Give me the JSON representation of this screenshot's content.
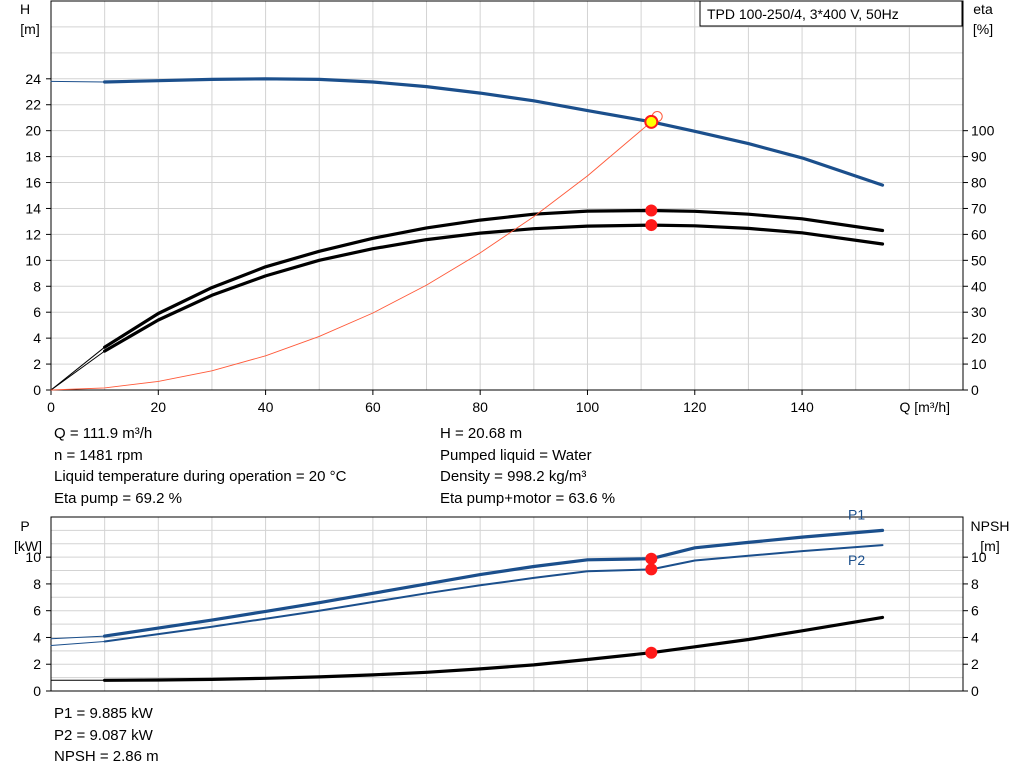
{
  "title_box": "TPD 100-250/4, 3*400 V, 50Hz",
  "colors": {
    "head": "#1b4f8c",
    "power": "#1b4f8c",
    "eta": "#000000",
    "npsh": "#000000",
    "system": "#ff5a3a",
    "point": "#ff1a1a",
    "op_fill": "#ffff00",
    "grid": "#d3d3d3"
  },
  "chart_data": [
    {
      "type": "line",
      "xlabel": "Q [m³/h]",
      "ylabel": "H\n[m]",
      "y2label": "eta\n[%]",
      "xlim": [
        0,
        170
      ],
      "ylim": [
        0,
        30
      ],
      "y2lim": [
        0,
        150
      ],
      "xticks": [
        0,
        20,
        40,
        60,
        80,
        100,
        120,
        140
      ],
      "yticks": [
        0,
        2,
        4,
        6,
        8,
        10,
        12,
        14,
        16,
        18,
        20,
        22,
        24
      ],
      "y2ticks": [
        0,
        10,
        20,
        30,
        40,
        50,
        60,
        70,
        80,
        90,
        100
      ],
      "grid": true,
      "series": [
        {
          "axis": "left",
          "style": "thin",
          "x": [
            0,
            10
          ],
          "y": [
            23.8,
            23.75
          ]
        },
        {
          "axis": "left",
          "style": "thick",
          "x": [
            10,
            20,
            30,
            40,
            50,
            60,
            70,
            80,
            90,
            100,
            111.9,
            120,
            130,
            140,
            155
          ],
          "y": [
            23.75,
            23.85,
            23.95,
            24.0,
            23.95,
            23.75,
            23.4,
            22.9,
            22.3,
            21.55,
            20.68,
            19.95,
            19.0,
            17.9,
            15.8
          ]
        },
        {
          "axis": "right",
          "style": "thin",
          "x": [
            0,
            10
          ],
          "y": [
            0,
            16.5
          ]
        },
        {
          "axis": "right",
          "style": "thick",
          "x": [
            10,
            20,
            30,
            40,
            50,
            60,
            70,
            80,
            90,
            100,
            111.9,
            120,
            130,
            140,
            155
          ],
          "y": [
            16.5,
            29.5,
            39.5,
            47.5,
            53.5,
            58.5,
            62.5,
            65.5,
            67.8,
            69.0,
            69.2,
            68.9,
            67.8,
            66.0,
            61.5
          ]
        },
        {
          "axis": "right",
          "style": "thin",
          "x": [
            0,
            10
          ],
          "y": [
            0,
            15.0
          ]
        },
        {
          "axis": "right",
          "style": "thick",
          "x": [
            10,
            20,
            30,
            40,
            50,
            60,
            70,
            80,
            90,
            100,
            111.9,
            120,
            130,
            140,
            155
          ],
          "y": [
            15.0,
            27.0,
            36.5,
            44.0,
            50.0,
            54.5,
            58.0,
            60.5,
            62.2,
            63.2,
            63.6,
            63.3,
            62.3,
            60.6,
            56.3
          ]
        },
        {
          "axis": "left",
          "style": "system",
          "x": [
            0,
            10,
            20,
            30,
            40,
            50,
            60,
            70,
            80,
            90,
            100,
            111.9,
            113
          ],
          "y": [
            0,
            0.16,
            0.66,
            1.48,
            2.64,
            4.13,
            5.94,
            8.09,
            10.57,
            13.37,
            16.51,
            20.68,
            21.09
          ]
        }
      ],
      "points": [
        {
          "axis": "left",
          "x": 111.9,
          "y": 20.68,
          "kind": "operating"
        },
        {
          "axis": "right",
          "x": 111.9,
          "y": 69.2
        },
        {
          "axis": "right",
          "x": 111.9,
          "y": 63.6
        }
      ]
    },
    {
      "type": "line",
      "ylabel": "P\n[kW]",
      "y2label": "NPSH\n[m]",
      "xlim": [
        0,
        170
      ],
      "ylim": [
        0,
        13
      ],
      "y2lim": [
        0,
        13
      ],
      "yticks": [
        0,
        2,
        4,
        6,
        8,
        10
      ],
      "y2ticks": [
        0,
        2,
        4,
        6,
        8,
        10
      ],
      "grid": true,
      "series": [
        {
          "name": "P1",
          "axis": "left",
          "style": "thin",
          "x": [
            0,
            10
          ],
          "y": [
            3.9,
            4.1
          ]
        },
        {
          "name": "P1",
          "axis": "left",
          "style": "thick",
          "x": [
            10,
            20,
            30,
            40,
            50,
            60,
            70,
            80,
            90,
            100,
            111.9,
            120,
            130,
            140,
            155
          ],
          "y": [
            4.1,
            4.7,
            5.3,
            5.95,
            6.6,
            7.3,
            8.0,
            8.7,
            9.3,
            9.8,
            9.885,
            10.7,
            11.1,
            11.5,
            12.0
          ]
        },
        {
          "name": "P2",
          "axis": "left",
          "style": "thin",
          "x": [
            0,
            10
          ],
          "y": [
            3.4,
            3.7
          ]
        },
        {
          "name": "P2",
          "axis": "left",
          "style": "medium",
          "x": [
            10,
            20,
            30,
            40,
            50,
            60,
            70,
            80,
            90,
            100,
            111.9,
            120,
            130,
            140,
            155
          ],
          "y": [
            3.7,
            4.25,
            4.8,
            5.4,
            6.0,
            6.65,
            7.3,
            7.9,
            8.45,
            8.95,
            9.087,
            9.75,
            10.1,
            10.45,
            10.9
          ]
        },
        {
          "axis": "right",
          "style": "thin",
          "x": [
            0,
            10
          ],
          "y": [
            0.8,
            0.8
          ]
        },
        {
          "axis": "right",
          "style": "thick",
          "x": [
            10,
            20,
            30,
            40,
            50,
            60,
            70,
            80,
            90,
            100,
            111.9,
            120,
            130,
            140,
            155
          ],
          "y": [
            0.8,
            0.82,
            0.87,
            0.95,
            1.05,
            1.2,
            1.4,
            1.65,
            1.95,
            2.35,
            2.86,
            3.3,
            3.85,
            4.5,
            5.5
          ]
        }
      ],
      "labels": [
        {
          "text": "P1",
          "x": 147,
          "y": 13.2,
          "axis": "left"
        },
        {
          "text": "P2",
          "x": 147,
          "y": 9.8,
          "axis": "left"
        }
      ],
      "points": [
        {
          "axis": "left",
          "x": 111.9,
          "y": 9.885
        },
        {
          "axis": "left",
          "x": 111.9,
          "y": 9.087
        },
        {
          "axis": "right",
          "x": 111.9,
          "y": 2.86
        }
      ]
    }
  ],
  "info_left": [
    "Q = 111.9 m³/h",
    "n = 1481 rpm",
    "Liquid temperature during operation = 20 °C",
    "Eta pump = 69.2 %"
  ],
  "info_right": [
    "H = 20.68 m",
    "Pumped liquid = Water",
    "Density = 998.2 kg/m³",
    "Eta pump+motor = 63.6 %"
  ],
  "info_bottom": [
    "P1 = 9.885 kW",
    "P2 = 9.087 kW",
    "NPSH = 2.86 m"
  ]
}
